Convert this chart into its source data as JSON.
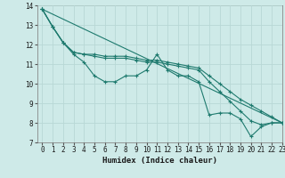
{
  "title": "",
  "xlabel": "Humidex (Indice chaleur)",
  "ylabel": "",
  "bg_color": "#ceeae8",
  "grid_color": "#b8d8d5",
  "line_color": "#1e7a6e",
  "xlim": [
    -0.5,
    23
  ],
  "ylim": [
    7,
    14
  ],
  "yticks": [
    7,
    8,
    9,
    10,
    11,
    12,
    13,
    14
  ],
  "xticks": [
    0,
    1,
    2,
    3,
    4,
    5,
    6,
    7,
    8,
    9,
    10,
    11,
    12,
    13,
    14,
    15,
    16,
    17,
    18,
    19,
    20,
    21,
    22,
    23
  ],
  "lines": [
    {
      "x": [
        0,
        1,
        2,
        3,
        4,
        5,
        6,
        7,
        8,
        9,
        10,
        11,
        12,
        13,
        14,
        15,
        16,
        17,
        18,
        19,
        20,
        21,
        22,
        23
      ],
      "y": [
        13.8,
        12.9,
        12.1,
        11.5,
        11.1,
        10.4,
        10.1,
        10.1,
        10.4,
        10.4,
        10.7,
        11.5,
        10.7,
        10.4,
        10.4,
        10.1,
        8.4,
        8.5,
        8.5,
        8.2,
        7.3,
        7.8,
        8.0,
        8.0
      ]
    },
    {
      "x": [
        0,
        1,
        2,
        3,
        4,
        5,
        6,
        7,
        8,
        9,
        10,
        11,
        12,
        13,
        14,
        15,
        16,
        17,
        18,
        19,
        20,
        21,
        22,
        23
      ],
      "y": [
        13.8,
        12.9,
        12.1,
        11.6,
        11.5,
        11.5,
        11.4,
        11.4,
        11.4,
        11.3,
        11.2,
        11.2,
        11.1,
        11.0,
        10.9,
        10.8,
        10.4,
        10.0,
        9.6,
        9.2,
        8.9,
        8.6,
        8.3,
        8.0
      ]
    },
    {
      "x": [
        0,
        23
      ],
      "y": [
        13.8,
        8.0
      ]
    },
    {
      "x": [
        0,
        1,
        2,
        3,
        4,
        5,
        6,
        7,
        8,
        9,
        10,
        11,
        12,
        13,
        14,
        15,
        16,
        17,
        18,
        19,
        20,
        21,
        22,
        23
      ],
      "y": [
        13.8,
        12.9,
        12.1,
        11.6,
        11.5,
        11.4,
        11.3,
        11.3,
        11.3,
        11.2,
        11.1,
        11.1,
        11.0,
        10.9,
        10.8,
        10.7,
        10.1,
        9.6,
        9.1,
        8.6,
        8.1,
        7.9,
        8.0,
        8.0
      ]
    }
  ],
  "tick_fontsize": 5.5,
  "xlabel_fontsize": 6.5
}
